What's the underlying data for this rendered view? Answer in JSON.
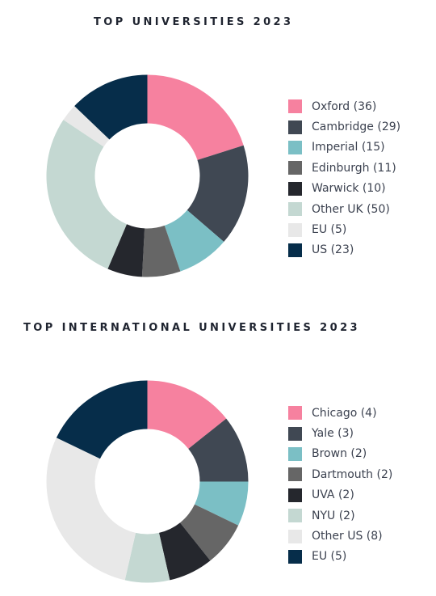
{
  "chart_data": [
    {
      "type": "pie",
      "title": "TOP UNIVERSITIES 2023",
      "categories": [
        "Oxford",
        "Cambridge",
        "Imperial",
        "Edinburgh",
        "Warwick",
        "Other UK",
        "EU",
        "US"
      ],
      "values": [
        36,
        29,
        15,
        11,
        10,
        50,
        5,
        23
      ],
      "colors": [
        "#f6819f",
        "#404853",
        "#7bbfc5",
        "#666666",
        "#25272d",
        "#c4d8d2",
        "#e8e8e8",
        "#062d4a"
      ],
      "legend_labels": [
        "Oxford (36)",
        "Cambridge (29)",
        "Imperial (15)",
        "Edinburgh (11)",
        "Warwick (10)",
        "Other UK (50)",
        "EU (5)",
        "US (23)"
      ],
      "legend_position": "right",
      "style": "donut"
    },
    {
      "type": "pie",
      "title": "TOP INTERNATIONAL UNIVERSITIES 2023",
      "categories": [
        "Chicago",
        "Yale",
        "Brown",
        "Dartmouth",
        "UVA",
        "NYU",
        "Other US",
        "EU"
      ],
      "values": [
        4,
        3,
        2,
        2,
        2,
        2,
        8,
        5
      ],
      "colors": [
        "#f6819f",
        "#404853",
        "#7bbfc5",
        "#666666",
        "#25272d",
        "#c4d8d2",
        "#e8e8e8",
        "#062d4a"
      ],
      "legend_labels": [
        "Chicago (4)",
        "Yale (3)",
        "Brown (2)",
        "Dartmouth (2)",
        "UVA (2)",
        "NYU (2)",
        "Other US (8)",
        "EU (5)"
      ],
      "legend_position": "right",
      "style": "donut"
    }
  ]
}
